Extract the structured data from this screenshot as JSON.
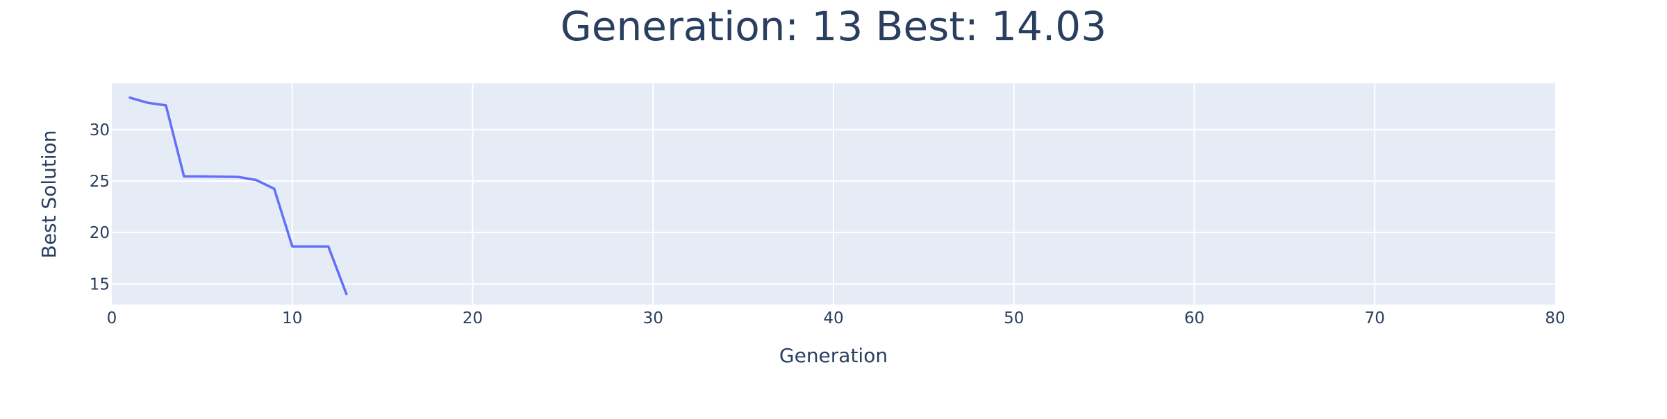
{
  "chart_data": {
    "type": "line",
    "title": "Generation: 13 Best: 14.03",
    "xlabel": "Generation",
    "ylabel": "Best Solution",
    "xlim": [
      0,
      80
    ],
    "ylim": [
      13,
      34.5
    ],
    "x_ticks": [
      0,
      10,
      20,
      30,
      40,
      50,
      60,
      70,
      80
    ],
    "y_ticks": [
      15,
      20,
      25,
      30
    ],
    "grid": true,
    "legend": "none",
    "series": [
      {
        "x": [
          1,
          2,
          3,
          4,
          5,
          6,
          7,
          8,
          9,
          10,
          11,
          12,
          13
        ],
        "values": [
          33.1,
          32.6,
          32.35,
          25.45,
          25.45,
          25.43,
          25.4,
          25.1,
          24.25,
          18.65,
          18.65,
          18.65,
          14.03
        ]
      }
    ],
    "colors": {
      "line": "#636efa",
      "plot_bg": "#e5ecf6",
      "grid": "#ffffff",
      "text": "#2a3f5f"
    }
  }
}
